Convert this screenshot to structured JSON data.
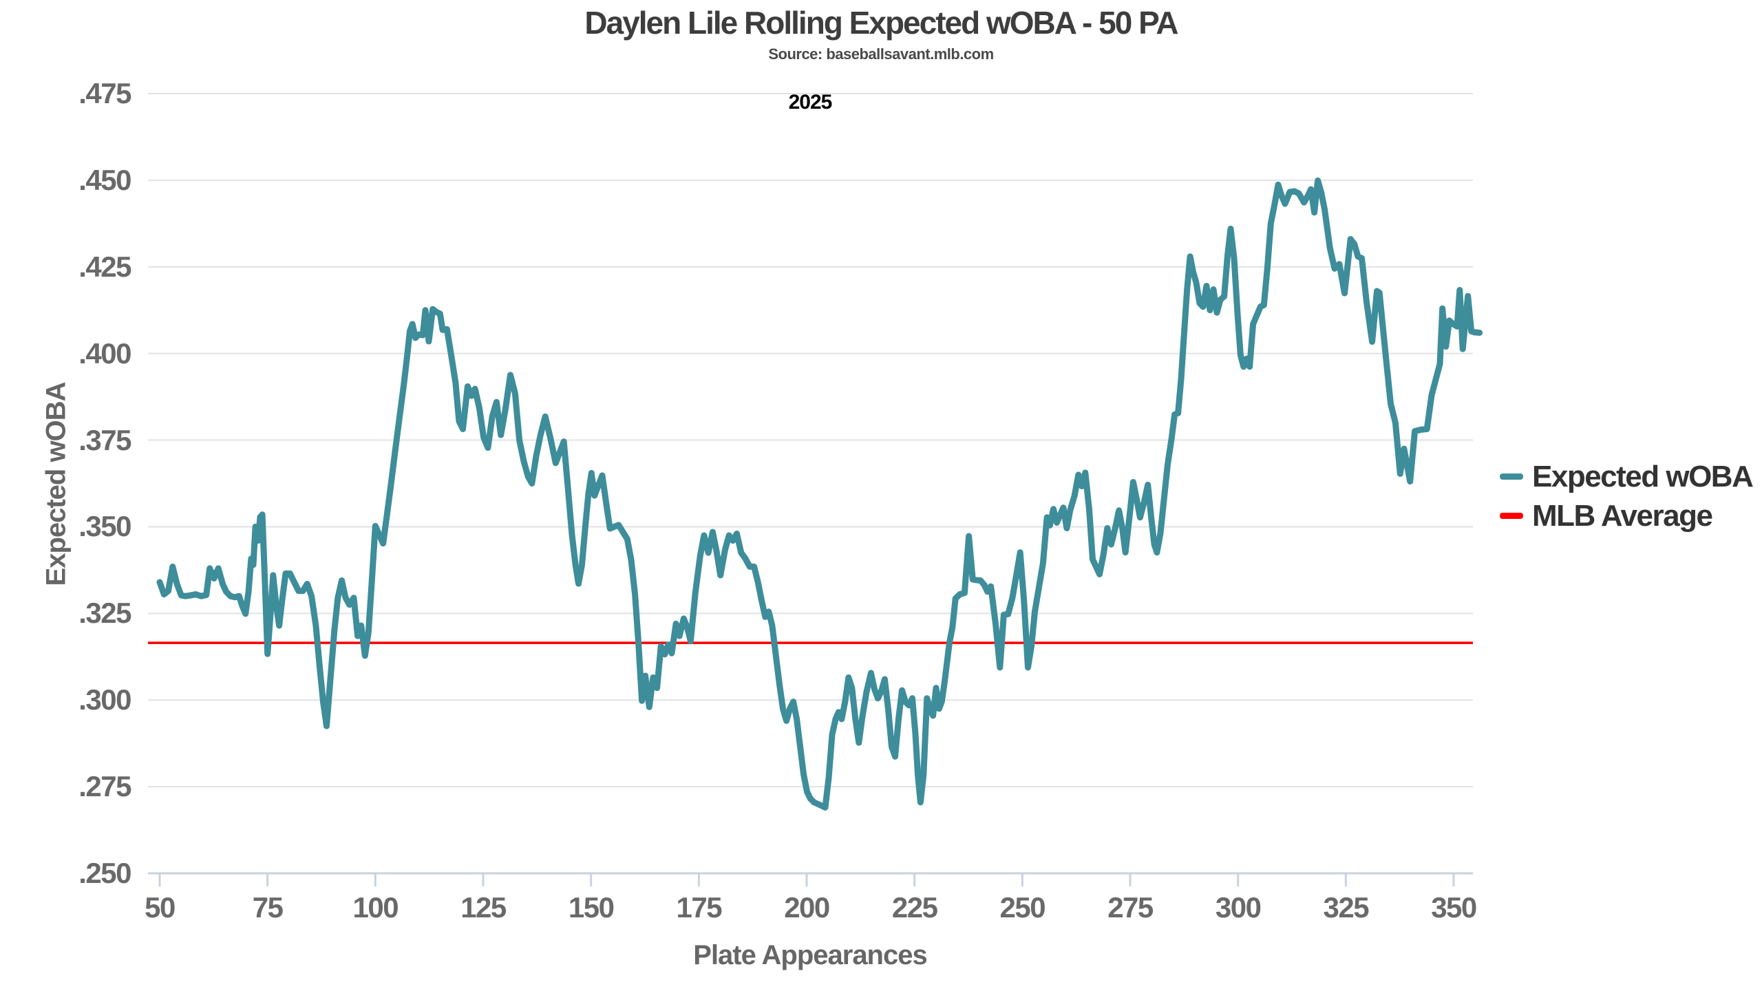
{
  "header": {
    "title": "Daylen Lile Rolling Expected wOBA - 50 PA",
    "subtitle": "Source: baseballsavant.mlb.com",
    "year_annotation": "2025"
  },
  "axes": {
    "y": {
      "label": "Expected wOBA",
      "tick_labels": [
        ".475",
        ".450",
        ".425",
        ".400",
        ".375",
        ".350",
        ".325",
        ".300",
        ".275",
        ".250"
      ],
      "tick_values": [
        0.475,
        0.45,
        0.425,
        0.4,
        0.375,
        0.35,
        0.325,
        0.3,
        0.275,
        0.25
      ]
    },
    "x": {
      "label": "Plate Appearances",
      "tick_labels": [
        "50",
        "75",
        "100",
        "125",
        "150",
        "175",
        "200",
        "225",
        "250",
        "275",
        "300",
        "325",
        "350"
      ],
      "tick_values": [
        50,
        75,
        100,
        125,
        150,
        175,
        200,
        225,
        250,
        275,
        300,
        325,
        350
      ]
    }
  },
  "legend": {
    "items": [
      {
        "label": "Expected wOBA",
        "color": "#3E8D9B"
      },
      {
        "label": "MLB Average",
        "color": "#FF0000"
      }
    ]
  },
  "colors": {
    "line": "#3E8D9B",
    "mlb_average_line": "#FF0000",
    "gridline": "#e2e2e2",
    "axis_line": "#c9d2de",
    "tick_text": "#696969",
    "title_text": "#3d3d3d"
  },
  "chart_data": {
    "type": "line",
    "title": "Daylen Lile Rolling Expected wOBA - 50 PA",
    "subtitle": "Source: baseballsavant.mlb.com",
    "xlabel": "Plate Appearances",
    "ylabel": "Expected wOBA",
    "xlim": [
      47,
      355
    ],
    "ylim": [
      0.25,
      0.475
    ],
    "grid": "horizontal",
    "legend_position": "right",
    "mlb_average": 0.3165,
    "series": [
      {
        "name": "Expected wOBA",
        "color": "#3E8D9B",
        "x": [
          50,
          51,
          52,
          53,
          54,
          55,
          56,
          57.2,
          58.4,
          59.6,
          60.8,
          61.6,
          62.6,
          63.6,
          64.6,
          65.4,
          66.4,
          67.4,
          68.4,
          69.2,
          69.9,
          70.6,
          71.2,
          71.7,
          72.2,
          72.8,
          73.3,
          73.8,
          74.4,
          75,
          75.7,
          76.3,
          77,
          77.7,
          78.4,
          79.2,
          80.2,
          81.2,
          82.2,
          83.2,
          84.2,
          85.2,
          86.2,
          87.1,
          87.9,
          88.7,
          89.6,
          90.5,
          91.3,
          92.2,
          93.1,
          94,
          95,
          95.9,
          96.7,
          97.6,
          98.4,
          99.2,
          100,
          101.8,
          102.6,
          103.6,
          104.6,
          105.6,
          106.6,
          107.3,
          108,
          108.6,
          109.3,
          110.1,
          111,
          111.6,
          112.4,
          113.3,
          114.1,
          115,
          115.6,
          116.6,
          117.6,
          118.6,
          119.4,
          120.3,
          121.4,
          122.3,
          123.1,
          124.1,
          125.1,
          126.1,
          127.1,
          128.1,
          129.1,
          130.1,
          131.3,
          132.4,
          133.4,
          134.4,
          135.4,
          136.3,
          137.3,
          138.3,
          139.4,
          140.6,
          141.8,
          142.8,
          143.7,
          144.6,
          145.6,
          146.4,
          147.1,
          147.9,
          148.6,
          149.4,
          150.1,
          150.8,
          152.6,
          153.5,
          154.4,
          155.4,
          156.4,
          157.4,
          158.4,
          159.3,
          160.2,
          161,
          161.8,
          162.6,
          163.5,
          164.4,
          165.3,
          166.2,
          167.1,
          167.9,
          168.7,
          169.7,
          170.5,
          171.5,
          172.3,
          173.1,
          174.2,
          175.3,
          176.2,
          177.2,
          178.2,
          179.1,
          180,
          181.1,
          182,
          182.9,
          183.8,
          184.8,
          185.7,
          186.8,
          187.8,
          188.7,
          189.6,
          190.4,
          191.2,
          192,
          192.9,
          193.7,
          194.5,
          195.3,
          196.1,
          196.9,
          197.7,
          198.5,
          199.3,
          200.1,
          200.9,
          201.7,
          203.5,
          204.3,
          205.1,
          205.9,
          206.7,
          207.4,
          208.1,
          208.9,
          209.7,
          210.5,
          211.3,
          212.1,
          212.9,
          213.9,
          214.9,
          215.7,
          216.5,
          217.3,
          218.1,
          218.9,
          219.7,
          220.5,
          221.3,
          222.1,
          222.9,
          223.7,
          224.5,
          225.2,
          225.8,
          226.4,
          227.1,
          227.9,
          228.6,
          229.3,
          230,
          230.7,
          231.3,
          231.9,
          232.5,
          233.1,
          233.8,
          234.5,
          235.5,
          236.6,
          237.6,
          238.5,
          239.4,
          240.3,
          241.2,
          241.9,
          242.7,
          243.8,
          244.8,
          245.7,
          246.7,
          247.7,
          248.6,
          249.5,
          250.4,
          251.3,
          252.1,
          252.9,
          254.8,
          255.7,
          256.4,
          257.2,
          258,
          258.8,
          259.5,
          260.3,
          261.1,
          262.1,
          263,
          263.8,
          264.6,
          265.5,
          266.3,
          267.1,
          267.9,
          268.8,
          269.7,
          270.6,
          271.5,
          272.4,
          273.2,
          273.9,
          274.8,
          275.7,
          276.5,
          277.3,
          278.2,
          279.1,
          279.9,
          280.6,
          281.2,
          282,
          282.8,
          283.7,
          284.6,
          285.3,
          286.1,
          286.8,
          287.5,
          288.2,
          288.9,
          289.6,
          290.3,
          291.1,
          291.9,
          292.7,
          293.5,
          294.3,
          295.1,
          295.9,
          296.8,
          297.6,
          298.3,
          299.1,
          299.9,
          300.6,
          301.3,
          302,
          302.7,
          303.5,
          305.2,
          306,
          306.8,
          307.6,
          308.4,
          309.3,
          310.1,
          310.9,
          312,
          313.1,
          314.1,
          315.3,
          316.2,
          316.9,
          317.7,
          318.5,
          319.3,
          320.1,
          321.3,
          322.4,
          323.5,
          324.7,
          326.1,
          327,
          327.8,
          328.7,
          329.8,
          331.1,
          332.2,
          332.8,
          334.2,
          335.4,
          336.5,
          337.6,
          338.5,
          339.9,
          341,
          342.4,
          343.8,
          344.9,
          346.8,
          347.4,
          348.2,
          349,
          349.9,
          350.8,
          351.4,
          352.1,
          353.3,
          354.1,
          354.9,
          356
        ],
        "y": [
          0.334,
          0.3305,
          0.3315,
          0.3385,
          0.3335,
          0.3302,
          0.33,
          0.3302,
          0.3305,
          0.33,
          0.3303,
          0.338,
          0.3351,
          0.338,
          0.3335,
          0.3313,
          0.33,
          0.3297,
          0.33,
          0.327,
          0.3249,
          0.3313,
          0.3408,
          0.339,
          0.35,
          0.346,
          0.3528,
          0.3535,
          0.334,
          0.3133,
          0.325,
          0.336,
          0.3275,
          0.3215,
          0.329,
          0.3365,
          0.3365,
          0.334,
          0.3315,
          0.3315,
          0.3335,
          0.33,
          0.3215,
          0.3095,
          0.2995,
          0.2925,
          0.3065,
          0.32,
          0.3295,
          0.3345,
          0.3295,
          0.3275,
          0.3295,
          0.3185,
          0.3215,
          0.3128,
          0.3195,
          0.3345,
          0.3502,
          0.3452,
          0.3525,
          0.362,
          0.372,
          0.3815,
          0.391,
          0.3985,
          0.4065,
          0.4085,
          0.4045,
          0.4055,
          0.4053,
          0.4125,
          0.4035,
          0.4128,
          0.412,
          0.4115,
          0.4068,
          0.407,
          0.3995,
          0.3915,
          0.3805,
          0.3782,
          0.3905,
          0.3878,
          0.3898,
          0.3843,
          0.3758,
          0.3728,
          0.3818,
          0.386,
          0.3765,
          0.3835,
          0.3938,
          0.3885,
          0.375,
          0.369,
          0.3645,
          0.3625,
          0.3705,
          0.3765,
          0.3818,
          0.3755,
          0.3684,
          0.3716,
          0.3746,
          0.362,
          0.3475,
          0.339,
          0.3336,
          0.339,
          0.349,
          0.3595,
          0.3655,
          0.359,
          0.3648,
          0.357,
          0.3495,
          0.35,
          0.3505,
          0.3485,
          0.3465,
          0.3405,
          0.3305,
          0.3165,
          0.2998,
          0.307,
          0.298,
          0.3065,
          0.3035,
          0.3155,
          0.3132,
          0.316,
          0.3135,
          0.322,
          0.3185,
          0.3235,
          0.321,
          0.317,
          0.331,
          0.3415,
          0.3475,
          0.3425,
          0.3485,
          0.343,
          0.336,
          0.3435,
          0.3475,
          0.346,
          0.348,
          0.3425,
          0.341,
          0.3385,
          0.3385,
          0.334,
          0.3285,
          0.324,
          0.3255,
          0.3215,
          0.3125,
          0.3045,
          0.2975,
          0.294,
          0.2975,
          0.2995,
          0.2945,
          0.2865,
          0.2785,
          0.2735,
          0.2715,
          0.2705,
          0.2695,
          0.269,
          0.2775,
          0.29,
          0.2945,
          0.2965,
          0.2945,
          0.2995,
          0.3065,
          0.3035,
          0.2945,
          0.2877,
          0.295,
          0.3025,
          0.3078,
          0.3032,
          0.3005,
          0.3025,
          0.306,
          0.2975,
          0.2865,
          0.2837,
          0.2945,
          0.3028,
          0.2995,
          0.2985,
          0.3005,
          0.2905,
          0.278,
          0.2705,
          0.2785,
          0.3005,
          0.2975,
          0.2955,
          0.3035,
          0.2975,
          0.2995,
          0.3045,
          0.3105,
          0.3165,
          0.321,
          0.3293,
          0.3305,
          0.3309,
          0.3473,
          0.3348,
          0.3346,
          0.3345,
          0.3332,
          0.3313,
          0.3328,
          0.322,
          0.3094,
          0.3246,
          0.3248,
          0.3295,
          0.336,
          0.3426,
          0.3285,
          0.3094,
          0.3155,
          0.3255,
          0.3395,
          0.3527,
          0.3504,
          0.3551,
          0.3512,
          0.3535,
          0.3555,
          0.3496,
          0.3548,
          0.359,
          0.365,
          0.3617,
          0.3656,
          0.355,
          0.3406,
          0.3385,
          0.3363,
          0.342,
          0.3496,
          0.3449,
          0.3495,
          0.3547,
          0.3495,
          0.3426,
          0.3525,
          0.3629,
          0.358,
          0.3527,
          0.357,
          0.3621,
          0.3525,
          0.3449,
          0.3426,
          0.348,
          0.3575,
          0.368,
          0.3755,
          0.3824,
          0.3828,
          0.3926,
          0.4055,
          0.4185,
          0.428,
          0.4235,
          0.4205,
          0.4145,
          0.4135,
          0.4195,
          0.4125,
          0.4185,
          0.4118,
          0.4155,
          0.4165,
          0.4285,
          0.436,
          0.4275,
          0.4115,
          0.3995,
          0.3962,
          0.3985,
          0.3962,
          0.4085,
          0.4135,
          0.414,
          0.4245,
          0.4375,
          0.4425,
          0.4487,
          0.4455,
          0.4432,
          0.4466,
          0.4468,
          0.4462,
          0.4436,
          0.4455,
          0.4474,
          0.4407,
          0.4499,
          0.4465,
          0.4415,
          0.4305,
          0.4245,
          0.4258,
          0.4174,
          0.433,
          0.4315,
          0.428,
          0.4275,
          0.415,
          0.4034,
          0.418,
          0.4175,
          0.4,
          0.3855,
          0.38,
          0.3653,
          0.3725,
          0.3631,
          0.3776,
          0.378,
          0.3782,
          0.388,
          0.397,
          0.413,
          0.402,
          0.4095,
          0.4085,
          0.4078,
          0.4183,
          0.4013,
          0.4166,
          0.4064,
          0.4061,
          0.406
        ]
      },
      {
        "name": "MLB Average",
        "color": "#FF0000",
        "constant": 0.3165
      }
    ]
  }
}
